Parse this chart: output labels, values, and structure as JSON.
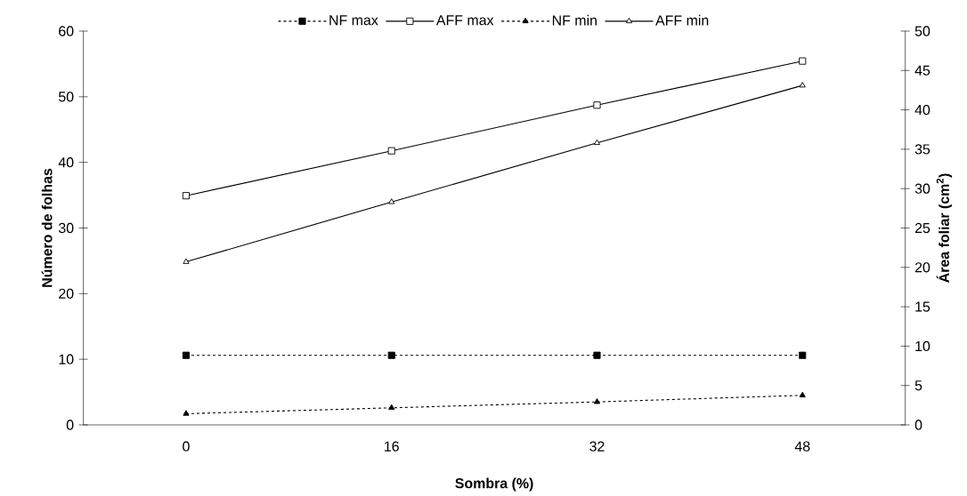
{
  "chart_data": {
    "type": "line",
    "xlabel": "Sombra (%)",
    "ylabel": "Número de folhas",
    "y2label": "Área foliar (cm$^{2}$)",
    "categories": [
      "0",
      "16",
      "32",
      "48"
    ],
    "series": [
      {
        "name": "NF max",
        "color": "#000000",
        "values": [
          10.6,
          10.6,
          10.6,
          10.6
        ],
        "marker": "square",
        "line_style": "dashed"
      },
      {
        "name": "AFF max",
        "color": "#000000",
        "values": [
          29.1,
          34.8,
          40.6,
          46.2
        ],
        "axis": "y2",
        "marker": "square",
        "line_style": "solid"
      },
      {
        "name": "NF min",
        "color": "#000000",
        "values": [
          1.7,
          2.6,
          3.5,
          4.5
        ],
        "marker": "triangle",
        "line_style": "dashed"
      },
      {
        "name": "AFF min",
        "color": "#000000",
        "values": [
          20.7,
          28.3,
          35.8,
          43.1
        ],
        "axis": "y2",
        "marker": "triangle",
        "line_style": "solid"
      }
    ],
    "ylim": [
      0,
      60
    ],
    "yticks": [
      0,
      10,
      20,
      30,
      40,
      50,
      60
    ],
    "y2lim": [
      0,
      50
    ],
    "y2ticks": [
      0,
      5,
      10,
      15,
      20,
      25,
      30,
      35,
      40,
      45,
      50
    ],
    "legend": "top"
  }
}
